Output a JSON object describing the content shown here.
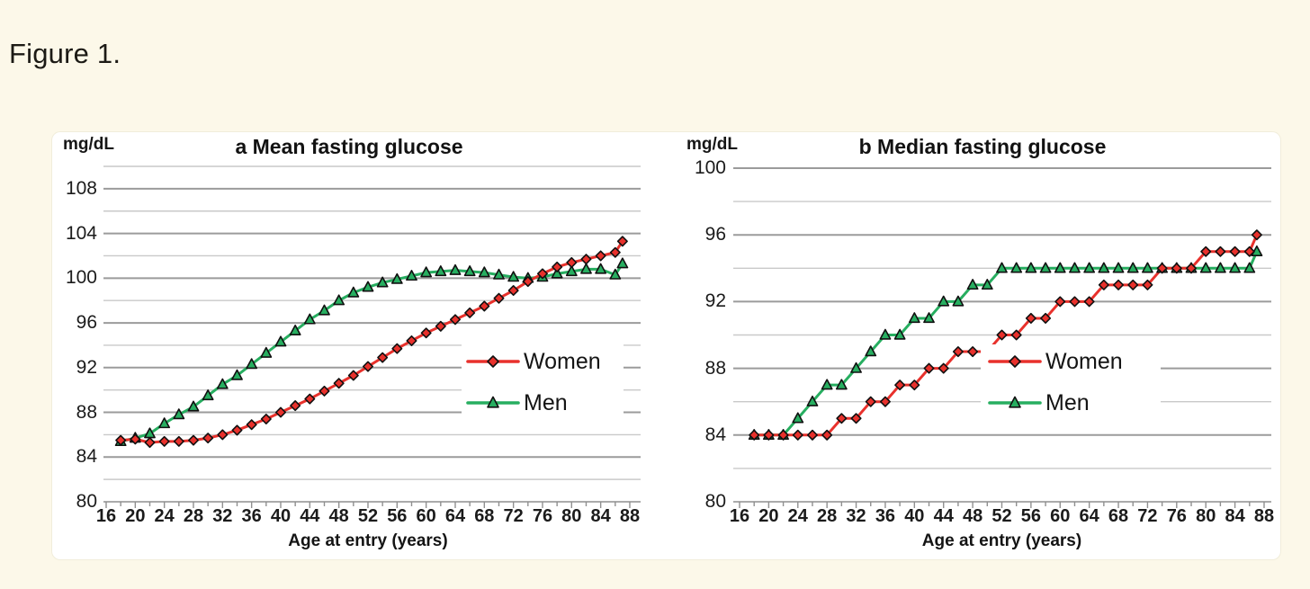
{
  "figure_label": "Figure 1.",
  "colors": {
    "background": "#FCF8E9",
    "panel": "#FFFFFF",
    "women": "#E8312C",
    "men": "#27AE60",
    "marker_outline": "#101010",
    "grid_major": "#9B9B9B",
    "grid_minor": "#C9C9C9",
    "axis": "#8F8F8F",
    "text": "#1B1B1B"
  },
  "chart_data": [
    {
      "type": "line",
      "panel_letter": "a",
      "title": "a Mean fasting glucose",
      "y_unit": "mg/dL",
      "xlabel": "Age at entry (years)",
      "x_ticks": [
        16,
        20,
        24,
        28,
        32,
        36,
        40,
        44,
        48,
        52,
        56,
        60,
        64,
        68,
        72,
        76,
        80,
        84,
        88
      ],
      "x_range": [
        16,
        88
      ],
      "y_tick_labels": [
        80,
        84,
        88,
        92,
        96,
        100,
        104,
        108
      ],
      "y_range": [
        80,
        110
      ],
      "grid_step": 2,
      "grid_on": true,
      "legend_position": "middle-right",
      "ages": [
        18,
        20,
        22,
        24,
        26,
        28,
        30,
        32,
        34,
        36,
        38,
        40,
        42,
        44,
        46,
        48,
        50,
        52,
        54,
        56,
        58,
        60,
        62,
        64,
        66,
        68,
        70,
        72,
        74,
        76,
        78,
        80,
        82,
        84,
        86,
        87
      ],
      "series": [
        {
          "name": "Women",
          "marker": "diamond",
          "color": "#E8312C",
          "values": [
            85.5,
            85.6,
            85.3,
            85.4,
            85.4,
            85.5,
            85.7,
            86.0,
            86.4,
            86.9,
            87.4,
            88.0,
            88.6,
            89.2,
            89.9,
            90.6,
            91.3,
            92.1,
            92.9,
            93.7,
            94.4,
            95.1,
            95.7,
            96.3,
            96.9,
            97.5,
            98.2,
            98.9,
            99.7,
            100.4,
            101.0,
            101.4,
            101.7,
            102.0,
            102.3,
            103.3
          ]
        },
        {
          "name": "Men",
          "marker": "triangle",
          "color": "#27AE60",
          "values": [
            85.4,
            85.7,
            86.1,
            87.0,
            87.8,
            88.5,
            89.5,
            90.5,
            91.3,
            92.3,
            93.3,
            94.3,
            95.3,
            96.3,
            97.1,
            98.0,
            98.7,
            99.2,
            99.6,
            99.9,
            100.2,
            100.5,
            100.6,
            100.7,
            100.6,
            100.5,
            100.3,
            100.1,
            100.0,
            100.1,
            100.4,
            100.6,
            100.8,
            100.8,
            100.3,
            101.3
          ]
        }
      ]
    },
    {
      "type": "line",
      "panel_letter": "b",
      "title": "b Median fasting glucose",
      "y_unit": "mg/dL",
      "xlabel": "Age at entry (years)",
      "x_ticks": [
        16,
        20,
        24,
        28,
        32,
        36,
        40,
        44,
        48,
        52,
        56,
        60,
        64,
        68,
        72,
        76,
        80,
        84,
        88
      ],
      "x_range": [
        16,
        88
      ],
      "y_tick_labels": [
        80,
        84,
        88,
        92,
        96,
        100
      ],
      "y_range": [
        80,
        100
      ],
      "grid_step": 2,
      "grid_on": true,
      "legend_position": "middle-right",
      "ages": [
        18,
        20,
        22,
        24,
        26,
        28,
        30,
        32,
        34,
        36,
        38,
        40,
        42,
        44,
        46,
        48,
        50,
        52,
        54,
        56,
        58,
        60,
        62,
        64,
        66,
        68,
        70,
        72,
        74,
        76,
        78,
        80,
        82,
        84,
        86,
        87
      ],
      "series": [
        {
          "name": "Women",
          "marker": "diamond",
          "color": "#E8312C",
          "values": [
            84,
            84,
            84,
            84,
            84,
            84,
            85,
            85,
            86,
            86,
            87,
            87,
            88,
            88,
            89,
            89,
            89,
            90,
            90,
            91,
            91,
            92,
            92,
            92,
            93,
            93,
            93,
            93,
            94,
            94,
            94,
            95,
            95,
            95,
            95,
            96
          ]
        },
        {
          "name": "Men",
          "marker": "triangle",
          "color": "#27AE60",
          "values": [
            84,
            84,
            84,
            85,
            86,
            87,
            87,
            88,
            89,
            90,
            90,
            91,
            91,
            92,
            92,
            93,
            93,
            94,
            94,
            94,
            94,
            94,
            94,
            94,
            94,
            94,
            94,
            94,
            94,
            94,
            94,
            94,
            94,
            94,
            94,
            95
          ]
        }
      ]
    }
  ]
}
